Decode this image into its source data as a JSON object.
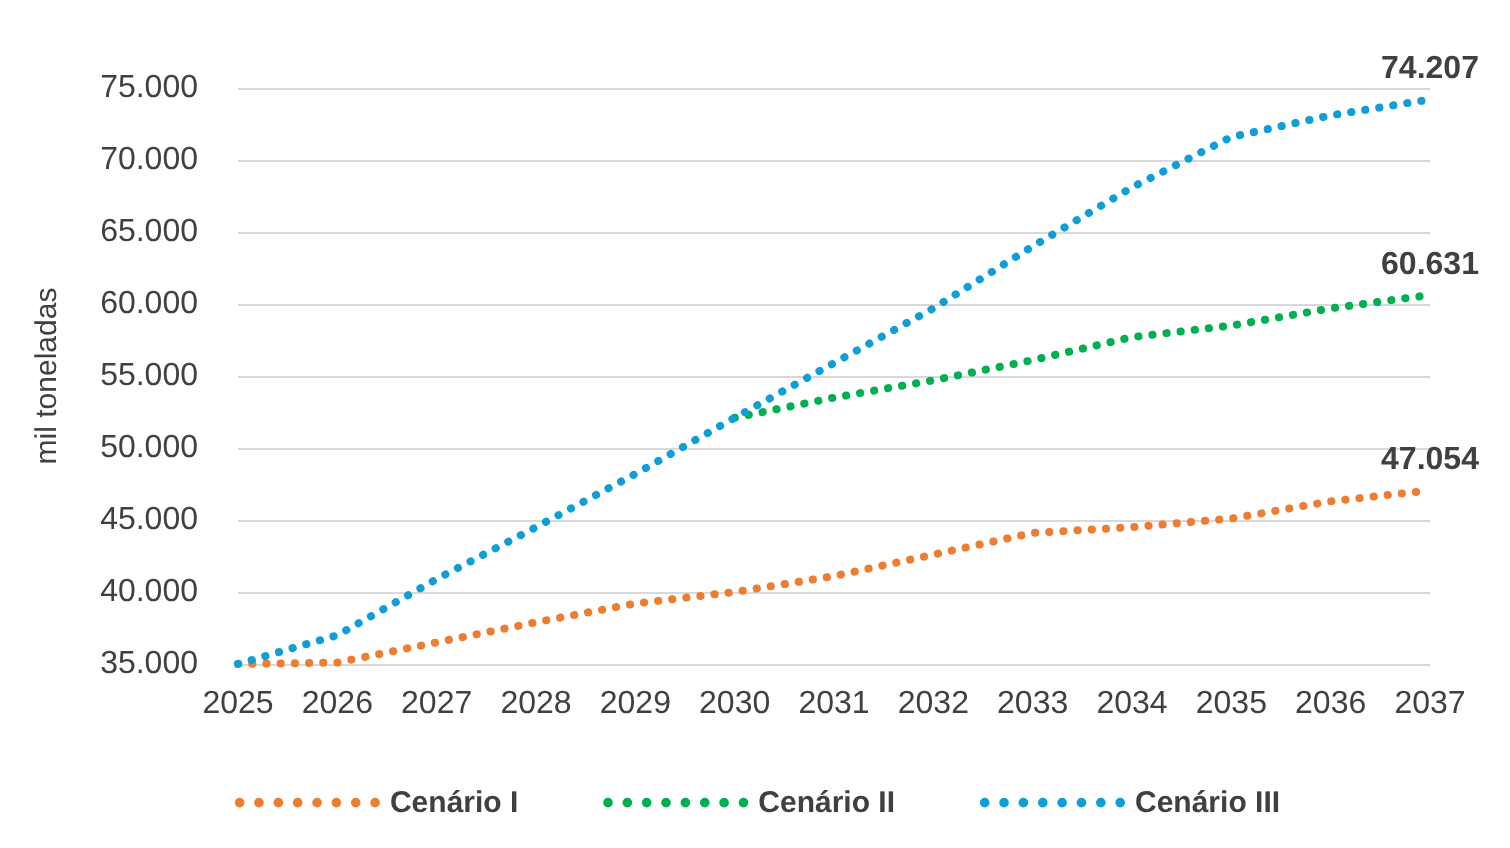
{
  "chart_data": {
    "type": "line",
    "ylabel": "mil toneladas",
    "categories": [
      "2025",
      "2026",
      "2027",
      "2028",
      "2029",
      "2030",
      "2031",
      "2032",
      "2033",
      "2034",
      "2035",
      "2036",
      "2037"
    ],
    "series": [
      {
        "name": "Cenário I",
        "color": "#ed7d31",
        "values": [
          35000,
          35100,
          36500,
          37900,
          39200,
          40000,
          41100,
          42600,
          44100,
          44500,
          45100,
          46300,
          47054
        ],
        "value_labels": [
          null,
          null,
          null,
          null,
          null,
          null,
          null,
          null,
          null,
          null,
          null,
          null,
          "47.054"
        ]
      },
      {
        "name": "Cenário II",
        "color": "#00b050",
        "values": [
          null,
          null,
          null,
          null,
          null,
          52100,
          53500,
          54700,
          56100,
          57700,
          58500,
          59700,
          60631
        ],
        "value_labels": [
          null,
          null,
          null,
          null,
          null,
          null,
          null,
          null,
          null,
          null,
          null,
          null,
          "60.631"
        ]
      },
      {
        "name": "Cenário III",
        "color": "#0f9ed5",
        "values": [
          35000,
          37000,
          40900,
          44500,
          48200,
          52100,
          55900,
          59700,
          64000,
          68100,
          71600,
          73100,
          74207
        ],
        "value_labels": [
          null,
          null,
          null,
          null,
          null,
          null,
          null,
          null,
          null,
          null,
          null,
          null,
          "74.207"
        ]
      }
    ],
    "ylim": [
      35000,
      75000
    ],
    "yticks": [
      {
        "value": 35000,
        "label": "35.000"
      },
      {
        "value": 40000,
        "label": "40.000"
      },
      {
        "value": 45000,
        "label": "45.000"
      },
      {
        "value": 50000,
        "label": "50.000"
      },
      {
        "value": 55000,
        "label": "55.000"
      },
      {
        "value": 60000,
        "label": "60.000"
      },
      {
        "value": 65000,
        "label": "65.000"
      },
      {
        "value": 70000,
        "label": "70.000"
      },
      {
        "value": 75000,
        "label": "75.000"
      }
    ],
    "grid": "y",
    "legend": "bottom",
    "marker": "none",
    "line_style": "dotted"
  }
}
